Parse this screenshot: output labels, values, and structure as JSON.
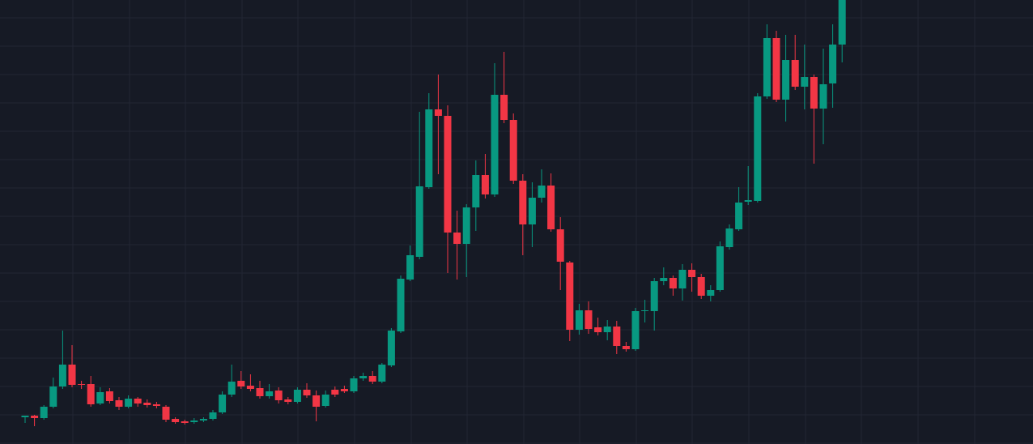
{
  "chart_data": {
    "type": "candlestick",
    "open": [
      33,
      35,
      32,
      46,
      71,
      98,
      74,
      74,
      50,
      65,
      54,
      46,
      56,
      51,
      49,
      46,
      31,
      28,
      27,
      29,
      31,
      39,
      61,
      78,
      72,
      69,
      59,
      66,
      55,
      52,
      67,
      60,
      47,
      67,
      68,
      65,
      81,
      84,
      77,
      97,
      139,
      203,
      231,
      317,
      413,
      405,
      261,
      247,
      292,
      332,
      308,
      431,
      400,
      325,
      271,
      304,
      319,
      265,
      224,
      141,
      165,
      144,
      138,
      145,
      121,
      117,
      164,
      164,
      201,
      205,
      192,
      215,
      206,
      183,
      190,
      243,
      265,
      299,
      300,
      429,
      501,
      425,
      474,
      441,
      453,
      414,
      445,
      493
    ],
    "high": [
      35,
      36,
      48,
      82,
      140,
      122,
      78,
      84,
      70,
      69,
      58,
      60,
      58,
      55,
      52,
      48,
      33,
      30,
      32,
      33,
      42,
      65,
      98,
      90,
      86,
      78,
      74,
      70,
      58,
      70,
      75,
      66,
      66,
      71,
      72,
      84,
      88,
      90,
      100,
      143,
      208,
      245,
      410,
      433,
      456,
      418,
      288,
      296,
      350,
      358,
      470,
      484,
      408,
      333,
      323,
      339,
      334,
      280,
      226,
      173,
      176,
      156,
      153,
      152,
      126,
      168,
      178,
      205,
      218,
      208,
      222,
      223,
      210,
      196,
      250,
      271,
      317,
      343,
      433,
      518,
      510,
      505,
      505,
      493,
      456,
      488,
      518,
      548
    ],
    "low": [
      26,
      22,
      30,
      44,
      68,
      70,
      68,
      46,
      48,
      50,
      42,
      44,
      46,
      45,
      44,
      27,
      25,
      24,
      25,
      27,
      29,
      37,
      58,
      68,
      65,
      56,
      56,
      50,
      49,
      50,
      57,
      28,
      45,
      58,
      63,
      63,
      78,
      74,
      75,
      95,
      137,
      201,
      228,
      315,
      333,
      211,
      203,
      206,
      263,
      303,
      305,
      396,
      321,
      233,
      243,
      298,
      262,
      190,
      127,
      135,
      136,
      134,
      128,
      111,
      114,
      115,
      150,
      140,
      196,
      183,
      177,
      188,
      179,
      176,
      188,
      240,
      263,
      295,
      298,
      426,
      422,
      398,
      437,
      413,
      346,
      370,
      415,
      471
    ],
    "close": [
      35,
      32,
      46,
      71,
      98,
      73,
      73,
      49,
      64,
      53,
      46,
      56,
      50,
      48,
      47,
      30,
      27,
      26,
      29,
      31,
      39,
      61,
      77,
      71,
      68,
      59,
      65,
      54,
      52,
      67,
      60,
      46,
      61,
      61,
      65,
      81,
      84,
      77,
      98,
      140,
      204,
      233,
      318,
      413,
      405,
      261,
      247,
      292,
      332,
      308,
      431,
      400,
      325,
      271,
      304,
      319,
      265,
      225,
      141,
      165,
      142,
      138,
      145,
      121,
      117,
      164,
      165,
      201,
      205,
      192,
      215,
      206,
      183,
      190,
      244,
      266,
      298,
      301,
      429,
      501,
      425,
      474,
      441,
      453,
      414,
      444,
      493,
      548
    ],
    "up_color": "#089981",
    "down_color": "#f23645",
    "ylim": [
      0,
      548
    ],
    "yticks": [
      1,
      36,
      71,
      106,
      141,
      176,
      211,
      246,
      281,
      316,
      351,
      386,
      421,
      456,
      491,
      526
    ],
    "grid": true
  }
}
